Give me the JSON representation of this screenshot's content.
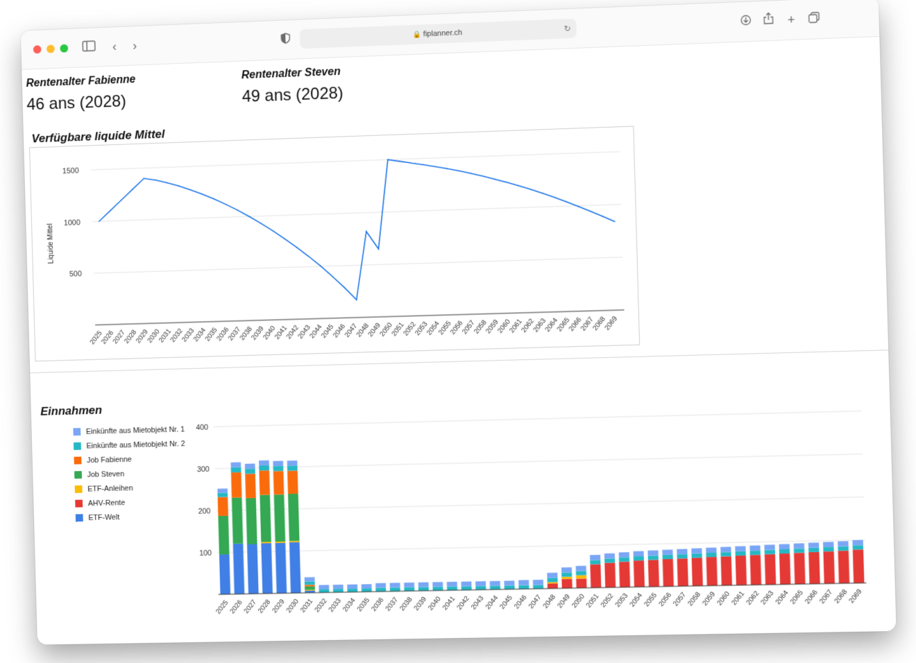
{
  "browser": {
    "url": "fiplanner.ch"
  },
  "kpis": [
    {
      "label": "Rentenalter Fabienne",
      "value": "46 ans (2028)"
    },
    {
      "label": "Rentenalter Steven",
      "value": "49 ans (2028)"
    }
  ],
  "liquid": {
    "title": "Verfügbare liquide Mittel"
  },
  "income": {
    "title": "Einnahmen"
  },
  "colors": {
    "line": "#1a73e8",
    "grid": "#e3e3e3",
    "axis": "#333333"
  },
  "chart_data": [
    {
      "type": "line",
      "title": "Verfügbare liquide Mittel",
      "xlabel": "",
      "ylabel": "Liquide Mittel",
      "ylim": [
        0,
        1600
      ],
      "yticks": [
        500,
        1000,
        1500
      ],
      "grid": true,
      "legend": "none",
      "x": [
        "2025",
        "2026",
        "2027",
        "2028",
        "2029",
        "2030",
        "2031",
        "2032",
        "2033",
        "2034",
        "2035",
        "2036",
        "2037",
        "2038",
        "2039",
        "2040",
        "2041",
        "2042",
        "2043",
        "2044",
        "2045",
        "2046",
        "2047",
        "2048",
        "2049",
        "2050",
        "2051",
        "2052",
        "2053",
        "2054",
        "2055",
        "2056",
        "2057",
        "2058",
        "2059",
        "2060",
        "2061",
        "2062",
        "2063",
        "2064",
        "2065",
        "2066",
        "2067",
        "2068",
        "2069"
      ],
      "values": [
        1000,
        1100,
        1200,
        1300,
        1400,
        1380,
        1350,
        1315,
        1275,
        1230,
        1180,
        1125,
        1065,
        1000,
        930,
        855,
        775,
        690,
        600,
        505,
        400,
        290,
        170,
        820,
        650,
        1500,
        1480,
        1460,
        1440,
        1418,
        1395,
        1370,
        1342,
        1312,
        1280,
        1246,
        1210,
        1172,
        1131,
        1088,
        1042,
        994,
        944,
        892,
        840
      ]
    },
    {
      "type": "bar",
      "stacked": true,
      "title": "Einnahmen",
      "xlabel": "",
      "ylabel": "",
      "ylim": [
        0,
        400
      ],
      "yticks": [
        100,
        200,
        300,
        400
      ],
      "grid": true,
      "legend": "left",
      "categories": [
        "2025",
        "2026",
        "2027",
        "2028",
        "2029",
        "2030",
        "2031",
        "2032",
        "2033",
        "2034",
        "2035",
        "2036",
        "2037",
        "2038",
        "2039",
        "2040",
        "2041",
        "2042",
        "2043",
        "2044",
        "2045",
        "2046",
        "2047",
        "2048",
        "2049",
        "2050",
        "2051",
        "2052",
        "2053",
        "2054",
        "2055",
        "2056",
        "2057",
        "2058",
        "2059",
        "2060",
        "2061",
        "2062",
        "2063",
        "2064",
        "2065",
        "2066",
        "2067",
        "2068",
        "2069"
      ],
      "series": [
        {
          "name": "ETF-Welt",
          "color": "#3f7fe6",
          "values": [
            95,
            120,
            118,
            120,
            120,
            121,
            5,
            0,
            0,
            0,
            0,
            0,
            0,
            0,
            0,
            0,
            0,
            0,
            0,
            0,
            0,
            0,
            0,
            0,
            0,
            0,
            0,
            0,
            0,
            0,
            0,
            0,
            0,
            0,
            0,
            0,
            0,
            0,
            0,
            0,
            0,
            0,
            0,
            0,
            0
          ]
        },
        {
          "name": "AHV-Rente",
          "color": "#e53935",
          "values": [
            0,
            0,
            0,
            0,
            0,
            0,
            0,
            0,
            0,
            0,
            0,
            0,
            0,
            0,
            0,
            0,
            0,
            0,
            0,
            0,
            0,
            0,
            0,
            12,
            22,
            22,
            55,
            58,
            60,
            62,
            63,
            64,
            65,
            66,
            67,
            68,
            69,
            70,
            71,
            72,
            73,
            74,
            75,
            76,
            78
          ]
        },
        {
          "name": "ETF-Anleihen",
          "color": "#fbbc04",
          "values": [
            0,
            0,
            0,
            3,
            3,
            3,
            2,
            0,
            0,
            0,
            0,
            0,
            0,
            0,
            0,
            0,
            0,
            0,
            0,
            0,
            0,
            0,
            0,
            3,
            5,
            8,
            0,
            0,
            0,
            0,
            0,
            0,
            0,
            0,
            0,
            0,
            0,
            0,
            0,
            0,
            0,
            0,
            0,
            0,
            0
          ]
        },
        {
          "name": "Job Steven",
          "color": "#34a853",
          "values": [
            92,
            110,
            110,
            112,
            112,
            112,
            8,
            0,
            0,
            0,
            0,
            0,
            0,
            0,
            0,
            0,
            0,
            0,
            0,
            0,
            0,
            0,
            0,
            0,
            0,
            0,
            0,
            0,
            0,
            0,
            0,
            0,
            0,
            0,
            0,
            0,
            0,
            0,
            0,
            0,
            0,
            0,
            0,
            0,
            0
          ]
        },
        {
          "name": "Job Fabienne",
          "color": "#fa6b0c",
          "values": [
            45,
            60,
            58,
            58,
            56,
            55,
            4,
            0,
            0,
            0,
            0,
            0,
            0,
            0,
            0,
            0,
            0,
            0,
            0,
            0,
            0,
            0,
            0,
            0,
            0,
            0,
            0,
            0,
            0,
            0,
            0,
            0,
            0,
            0,
            0,
            0,
            0,
            0,
            0,
            0,
            0,
            0,
            0,
            0,
            0
          ]
        },
        {
          "name": "Einkünfte aus Mietobjekt Nr. 2",
          "color": "#26b8c4",
          "values": [
            10,
            12,
            12,
            12,
            12,
            12,
            8,
            8,
            8,
            8,
            8,
            9,
            9,
            9,
            9,
            9,
            9,
            9,
            9,
            9,
            9,
            9,
            9,
            10,
            10,
            10,
            10,
            10,
            10,
            10,
            10,
            10,
            10,
            10,
            10,
            10,
            10,
            10,
            10,
            10,
            10,
            10,
            10,
            10,
            10
          ]
        },
        {
          "name": "Einkünfte aus Mietobjekt Nr. 1",
          "color": "#7aa6f5",
          "values": [
            10,
            12,
            12,
            12,
            12,
            12,
            10,
            10,
            10,
            10,
            10,
            11,
            11,
            11,
            11,
            11,
            11,
            11,
            11,
            11,
            11,
            12,
            12,
            12,
            12,
            12,
            12,
            12,
            12,
            12,
            12,
            12,
            12,
            12,
            12,
            12,
            12,
            12,
            12,
            12,
            12,
            12,
            12,
            12,
            12
          ]
        }
      ]
    }
  ]
}
